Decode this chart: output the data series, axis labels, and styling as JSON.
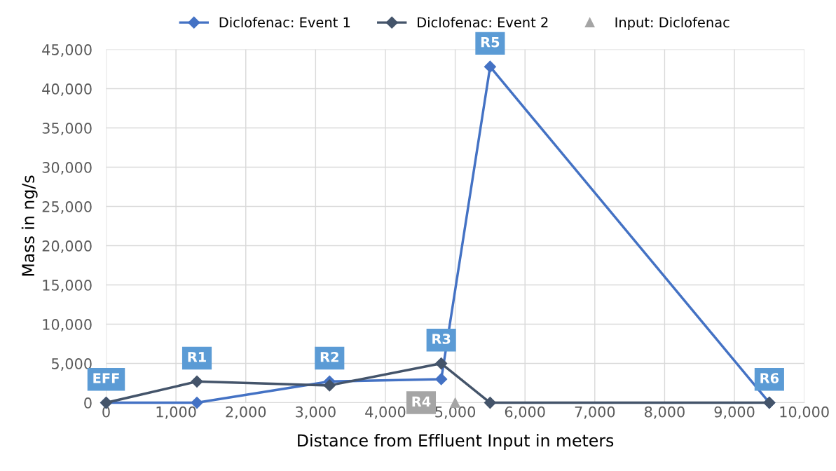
{
  "chart_data": {
    "type": "line",
    "xlabel": "Distance from Effluent Input in meters",
    "ylabel": "Mass in ng/s",
    "xlim": [
      0,
      10000
    ],
    "xticks": [
      {
        "value": 0,
        "label": "0"
      },
      {
        "value": 1000,
        "label": "1,000"
      },
      {
        "value": 2000,
        "label": "2,000"
      },
      {
        "value": 3000,
        "label": "3,000"
      },
      {
        "value": 4000,
        "label": "4,000"
      },
      {
        "value": 5000,
        "label": "5,000"
      },
      {
        "value": 6000,
        "label": "6,000"
      },
      {
        "value": 7000,
        "label": "7,000"
      },
      {
        "value": 8000,
        "label": "8,000"
      },
      {
        "value": 9000,
        "label": "9,000"
      },
      {
        "value": 10000,
        "label": "10,000"
      }
    ],
    "ylim": [
      0,
      45000
    ],
    "yticks": [
      {
        "value": 0,
        "label": "0"
      },
      {
        "value": 5000,
        "label": "5,000"
      },
      {
        "value": 10000,
        "label": "10,000"
      },
      {
        "value": 15000,
        "label": "15,000"
      },
      {
        "value": 20000,
        "label": "20,000"
      },
      {
        "value": 25000,
        "label": "25,000"
      },
      {
        "value": 30000,
        "label": "30,000"
      },
      {
        "value": 35000,
        "label": "35,000"
      },
      {
        "value": 40000,
        "label": "40,000"
      },
      {
        "value": 45000,
        "label": "45,000"
      }
    ],
    "grid": true,
    "legend": "top",
    "marker": "diamond",
    "series": [
      {
        "name": "Diclofenac: Event 1",
        "color": "#4472c4",
        "x": [
          0,
          1300,
          3200,
          4800,
          5500,
          9500
        ],
        "values": [
          0,
          0,
          2700,
          3000,
          42800,
          0
        ]
      },
      {
        "name": "Diclofenac: Event 2",
        "color": "#44546a",
        "x": [
          0,
          1300,
          3200,
          4800,
          5500,
          9500
        ],
        "values": [
          0,
          2700,
          2200,
          5000,
          0,
          0
        ]
      },
      {
        "name": "Input: Diclofenac",
        "type": "scatter",
        "marker": "triangle",
        "color": "#a5a5a5",
        "x": [
          5000
        ],
        "values": [
          0
        ]
      }
    ],
    "annotations": [
      {
        "text": "EFF",
        "x": 0,
        "y": 0
      },
      {
        "text": "R1",
        "x": 1300,
        "y": 2700
      },
      {
        "text": "R2",
        "x": 3200,
        "y": 2700
      },
      {
        "text": "R3",
        "x": 4800,
        "y": 5000
      },
      {
        "text": "R4",
        "x": 5000,
        "y": 0
      },
      {
        "text": "R5",
        "x": 5500,
        "y": 42800
      },
      {
        "text": "R6",
        "x": 9500,
        "y": 0
      }
    ]
  }
}
